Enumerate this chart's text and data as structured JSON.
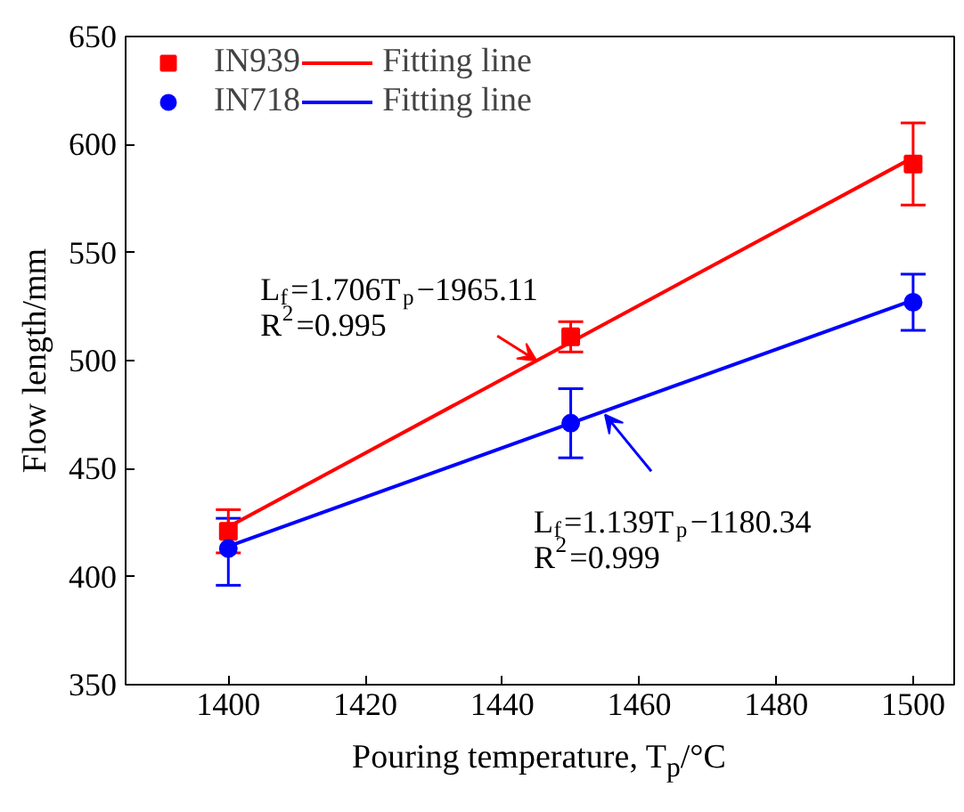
{
  "chart_data": {
    "type": "scatter",
    "xlabel": "Pouring temperature, T$_{p}$/°C",
    "ylabel": "Flow length/mm",
    "xlim": [
      1385,
      1506
    ],
    "xticks": [
      1400,
      1420,
      1440,
      1460,
      1480,
      1500
    ],
    "ylim": [
      350,
      650
    ],
    "yticks": [
      350,
      400,
      450,
      500,
      550,
      600,
      650
    ],
    "grid": false,
    "legend": "top left",
    "series": [
      {
        "name": "IN939",
        "marker": "square",
        "color": "#ff0000",
        "x": [
          1400,
          1450,
          1500
        ],
        "values": [
          421,
          511,
          591
        ],
        "errors": [
          10,
          7,
          19
        ]
      },
      {
        "name": "IN718",
        "marker": "circle",
        "color": "#0000ff",
        "x": [
          1400,
          1450,
          1500
        ],
        "values": [
          413,
          471,
          527
        ],
        "errors": [
          [
            396,
            427
          ],
          16,
          13
        ]
      },
      {
        "name": "Fitting line",
        "type": "line",
        "color": "#ff0000",
        "x": [
          1400,
          1500
        ],
        "values": [
          423,
          594
        ]
      },
      {
        "name": "Fitting line",
        "type": "line",
        "color": "#0000ff",
        "x": [
          1400,
          1500
        ],
        "values": [
          414,
          528
        ]
      }
    ],
    "annotations": [
      {
        "text": "L$_{f}$=1.706T$_{p}$−1965.11",
        "x": 1445,
        "y": 500
      },
      "R$^{2}$=0.995",
      {
        "text": "L$_{f}$=1.139T$_{p}$−1180.34",
        "x": 1455,
        "y": 475
      },
      "R$^{2}$=0.999"
    ]
  }
}
